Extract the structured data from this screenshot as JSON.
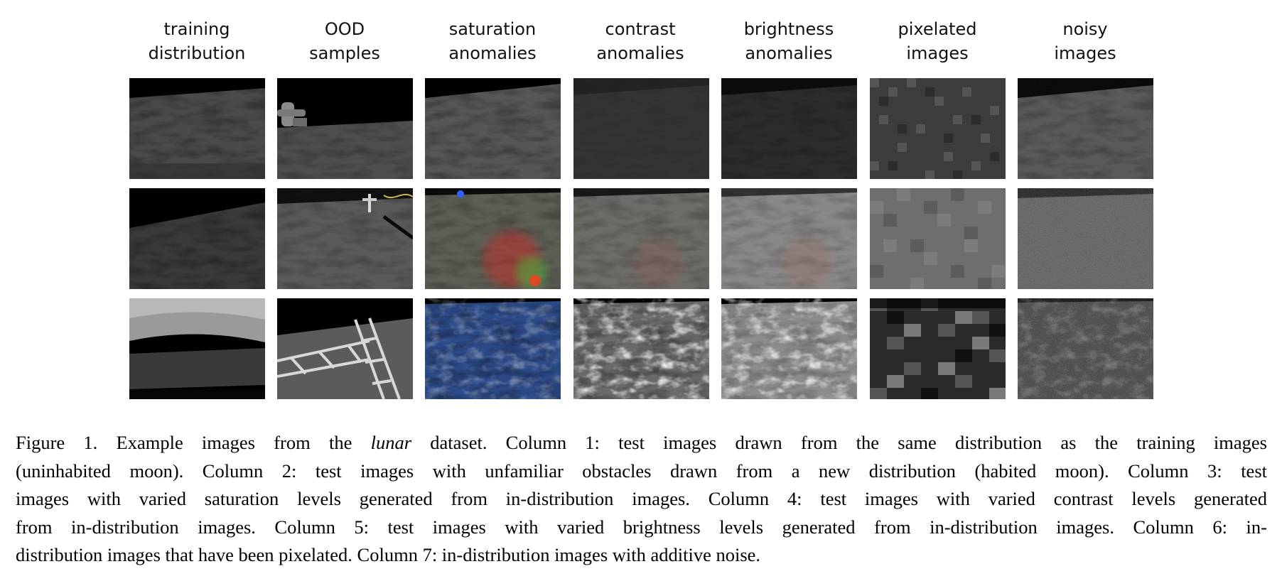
{
  "columns": [
    {
      "line1": "training",
      "line2": "distribution"
    },
    {
      "line1": "OOD",
      "line2": "samples"
    },
    {
      "line1": "saturation",
      "line2": "anomalies"
    },
    {
      "line1": "contrast",
      "line2": "anomalies"
    },
    {
      "line1": "brightness",
      "line2": "anomalies"
    },
    {
      "line1": "pixelated",
      "line2": "images"
    },
    {
      "line1": "noisy",
      "line2": "images"
    }
  ],
  "caption": {
    "l1_a": "Figure 1.  Example images from the ",
    "l1_em": "lunar",
    "l1_b": " dataset.  Column 1:  test images drawn from the same distribution as the training images",
    "l2": "(uninhabited moon).  Column 2:  test images with unfamiliar obstacles drawn from a new distribution (habited moon).  Column 3:  test",
    "l3": "images with varied saturation levels generated from in-distribution images.  Column 4:  test images with varied contrast levels generated",
    "l4": "from in-distribution images.  Column 5:  test images with varied brightness levels generated from in-distribution images.  Column 6:  in-",
    "l5": "distribution images that have been pixelated. Column 7: in-distribution images with additive noise."
  }
}
